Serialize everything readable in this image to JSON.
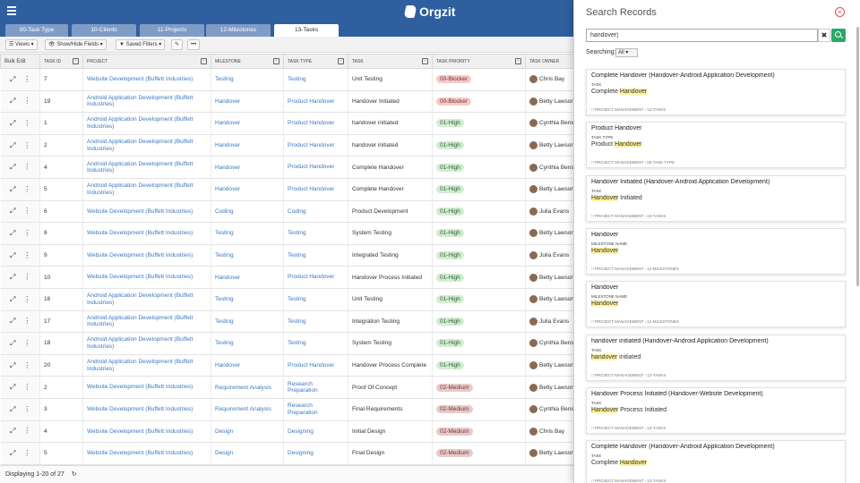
{
  "app": {
    "logo_text": "Orgzit"
  },
  "tabs": [
    {
      "label": "00-Task Type"
    },
    {
      "label": "10-Clients"
    },
    {
      "label": "11-Projects"
    },
    {
      "label": "12-Milestones"
    },
    {
      "label": "13-Tasks"
    }
  ],
  "toolbar": {
    "views": "Views",
    "show_hide": "Show/Hide Fields",
    "saved_filters": "Saved Filters",
    "more": "•••"
  },
  "grid": {
    "bulk_edit": "Bulk Edit",
    "columns": [
      "Task ID",
      "Project",
      "Milestone",
      "Task Type",
      "Task",
      "Task Priority",
      "Task Owner"
    ],
    "rows": [
      {
        "id": "7",
        "project": "Website Development (Buffett Industries)",
        "milestone": "Testing",
        "type": "Testing",
        "task": "Unit Testing",
        "priority": "00-Blocker",
        "owner": "Chris Bay"
      },
      {
        "id": "19",
        "project": "Android Application Development (Buffett Industries)",
        "milestone": "Handover",
        "type": "Product Handover",
        "task": "Handover Initiated",
        "priority": "00-Blocker",
        "owner": "Betty Lawson"
      },
      {
        "id": "1",
        "project": "Android Application Development (Buffett Industries)",
        "milestone": "Handover",
        "type": "Product Handover",
        "task": "handover initiated",
        "priority": "01-High",
        "owner": "Cynthia Benson"
      },
      {
        "id": "2",
        "project": "Android Application Development (Buffett Industries)",
        "milestone": "Handover",
        "type": "Product Handover",
        "task": "handover initiated",
        "priority": "01-High",
        "owner": "Betty Lawson"
      },
      {
        "id": "4",
        "project": "Android Application Development (Buffett Industries)",
        "milestone": "Handover",
        "type": "Product Handover",
        "task": "Complete Handover",
        "priority": "01-High",
        "owner": "Cynthia Benson"
      },
      {
        "id": "5",
        "project": "Android Application Development (Buffett Industries)",
        "milestone": "Handover",
        "type": "Product Handover",
        "task": "Complete Handover",
        "priority": "01-High",
        "owner": "Betty Lawson"
      },
      {
        "id": "6",
        "project": "Website Development (Buffett Industries)",
        "milestone": "Coding",
        "type": "Coding",
        "task": "Product Development",
        "priority": "01-High",
        "owner": "Julia Evans"
      },
      {
        "id": "8",
        "project": "Website Development (Buffett Industries)",
        "milestone": "Testing",
        "type": "Testing",
        "task": "System Testing",
        "priority": "01-High",
        "owner": "Betty Lawson"
      },
      {
        "id": "9",
        "project": "Website Development (Buffett Industries)",
        "milestone": "Testing",
        "type": "Testing",
        "task": "Integrated Testing",
        "priority": "01-High",
        "owner": "Julia Evans"
      },
      {
        "id": "10",
        "project": "Website Development (Buffett Industries)",
        "milestone": "Handover",
        "type": "Product Handover",
        "task": "Handover Process Initiated",
        "priority": "01-High",
        "owner": "Betty Lawson"
      },
      {
        "id": "16",
        "project": "Android Application Development (Buffett Industries)",
        "milestone": "Testing",
        "type": "Testing",
        "task": "Unit Testing",
        "priority": "01-High",
        "owner": "Betty Lawson"
      },
      {
        "id": "17",
        "project": "Android Application Development (Buffett Industries)",
        "milestone": "Testing",
        "type": "Testing",
        "task": "Integration Testing",
        "priority": "01-High",
        "owner": "Julia Evans"
      },
      {
        "id": "18",
        "project": "Android Application Development (Buffett Industries)",
        "milestone": "Testing",
        "type": "Testing",
        "task": "System Testing",
        "priority": "01-High",
        "owner": "Cynthia Benson"
      },
      {
        "id": "20",
        "project": "Android Application Development (Buffett Industries)",
        "milestone": "Handover",
        "type": "Product Handover",
        "task": "Handover Process Complete",
        "priority": "01-High",
        "owner": "Betty Lawson"
      },
      {
        "id": "2",
        "project": "Website Development (Buffett Industries)",
        "milestone": "Requirement Analysis",
        "type": "Research Preparation",
        "task": "Proof Of Concept",
        "priority": "02-Medium",
        "owner": "Betty Lawson"
      },
      {
        "id": "3",
        "project": "Website Development (Buffett Industries)",
        "milestone": "Requirement Analysis",
        "type": "Research Preparation",
        "task": "Final Requirements",
        "priority": "02-Medium",
        "owner": "Cynthia Benson"
      },
      {
        "id": "4",
        "project": "Website Development (Buffett Industries)",
        "milestone": "Design",
        "type": "Designing",
        "task": "Initial Design",
        "priority": "02-Medium",
        "owner": "Chris Bay"
      },
      {
        "id": "5",
        "project": "Website Development (Buffett Industries)",
        "milestone": "Design",
        "type": "Designing",
        "task": "Final Design",
        "priority": "02-Medium",
        "owner": "Betty Lawson"
      }
    ]
  },
  "footer": {
    "displaying": "Displaying 1-20 of 27"
  },
  "search": {
    "title": "Search Records",
    "query": "handover|",
    "searching_label": "Searching:",
    "searching_value": "All",
    "results": [
      {
        "title": "Complete Handover (Handover-Android Application Development)",
        "field": "TASK",
        "pre": "Complete ",
        "hl": "Handover",
        "post": "",
        "path": "PROJECT MANAGEMENT  ›  13-TASKS"
      },
      {
        "title": "Product Handover",
        "field": "TASK TYPE",
        "pre": "Product ",
        "hl": "Handover",
        "post": "",
        "path": "PROJECT MANAGEMENT  ›  00-TASK TYPE"
      },
      {
        "title": "Handover Initiated (Handover-Android Application Development)",
        "field": "TASK",
        "pre": "",
        "hl": "Handover",
        "post": " Initiated",
        "path": "PROJECT MANAGEMENT  ›  13-TASKS"
      },
      {
        "title": "Handover",
        "field": "MILESTONE NAME",
        "pre": "",
        "hl": "Handover",
        "post": "",
        "path": "PROJECT MANAGEMENT  ›  12-MILESTONES"
      },
      {
        "title": "Handover",
        "field": "MILESTONE NAME",
        "pre": "",
        "hl": "Handover",
        "post": "",
        "path": "PROJECT MANAGEMENT  ›  12-MILESTONES"
      },
      {
        "title": "handover initiated (Handover-Android Application Development)",
        "field": "TASK",
        "pre": "",
        "hl": "handover",
        "post": " initiated",
        "path": "PROJECT MANAGEMENT  ›  13-TASKS"
      },
      {
        "title": "Handover Process Initiated (Handover-Website Development)",
        "field": "TASK",
        "pre": "",
        "hl": "Handover",
        "post": " Process Initiated",
        "path": "PROJECT MANAGEMENT  ›  13-TASKS"
      },
      {
        "title": "Complete Handover (Handover-Android Application Development)",
        "field": "TASK",
        "pre": "Complete ",
        "hl": "Handover",
        "post": "",
        "path": "PROJECT MANAGEMENT  ›  13-TASKS"
      }
    ]
  },
  "colors": {
    "topbar": "#2f5f9e",
    "link": "#3b78c2",
    "accent_green": "#2aa86a",
    "close_red": "#d9534f"
  }
}
